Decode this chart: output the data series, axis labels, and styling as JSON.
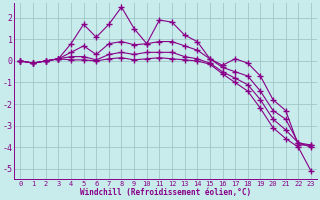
{
  "xlabel": "Windchill (Refroidissement éolien,°C)",
  "bg_color": "#c8ecec",
  "grid_color": "#a0c8c8",
  "line_color": "#880088",
  "x_values": [
    0,
    1,
    2,
    3,
    4,
    5,
    6,
    7,
    8,
    9,
    10,
    11,
    12,
    13,
    14,
    15,
    16,
    17,
    18,
    19,
    20,
    21,
    22,
    23
  ],
  "series1": [
    0.0,
    -0.1,
    0.0,
    0.1,
    0.8,
    1.7,
    1.1,
    1.7,
    2.5,
    1.5,
    0.8,
    1.9,
    1.8,
    1.2,
    0.9,
    0.1,
    -0.2,
    0.1,
    -0.1,
    -0.7,
    -1.8,
    -2.3,
    -3.9,
    -3.9
  ],
  "series2": [
    0.0,
    -0.1,
    0.0,
    0.1,
    0.4,
    0.7,
    0.3,
    0.8,
    0.9,
    0.75,
    0.8,
    0.9,
    0.9,
    0.7,
    0.5,
    0.1,
    -0.3,
    -0.5,
    -0.7,
    -1.4,
    -2.3,
    -2.7,
    -3.8,
    -3.9
  ],
  "series3": [
    0.0,
    -0.1,
    0.0,
    0.1,
    0.2,
    0.2,
    0.05,
    0.3,
    0.4,
    0.3,
    0.4,
    0.4,
    0.4,
    0.2,
    0.1,
    -0.1,
    -0.5,
    -0.8,
    -1.1,
    -1.8,
    -2.7,
    -3.2,
    -3.8,
    -4.0
  ],
  "series4": [
    0.0,
    -0.1,
    0.0,
    0.1,
    0.05,
    0.05,
    0.0,
    0.1,
    0.15,
    0.05,
    0.1,
    0.15,
    0.1,
    0.05,
    0.0,
    -0.15,
    -0.6,
    -1.0,
    -1.4,
    -2.2,
    -3.1,
    -3.6,
    -4.0,
    -5.1
  ],
  "ylim": [
    -5.5,
    2.7
  ],
  "yticks": [
    -5,
    -4,
    -3,
    -2,
    -1,
    0,
    1,
    2
  ],
  "xlim": [
    -0.5,
    23.5
  ]
}
